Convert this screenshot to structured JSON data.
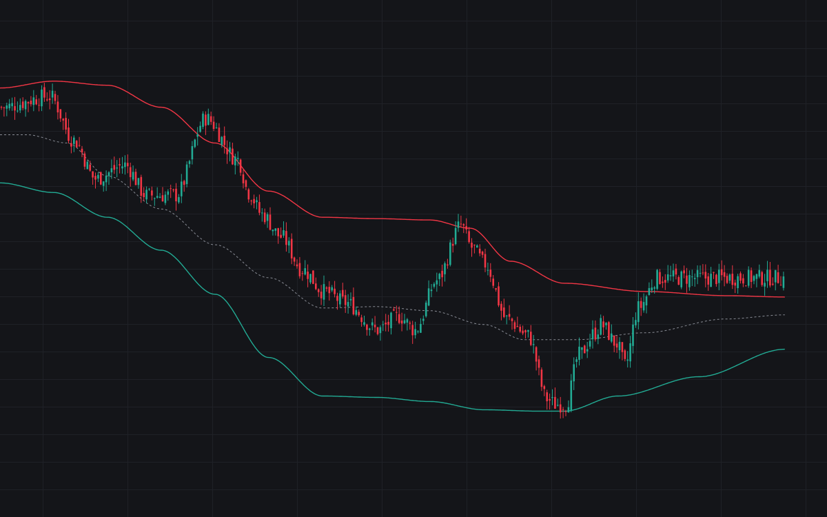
{
  "chart_data": {
    "type": "candlestick",
    "title": "",
    "xlabel": "",
    "ylabel": "",
    "x_range": [
      0,
      300
    ],
    "ylim": [
      -10,
      178
    ],
    "grid": true,
    "legend": "none",
    "colors": {
      "background": "#141519",
      "grid": "#1f2127",
      "up": "#22ab94",
      "down": "#f23645",
      "upper_band": "#f23645",
      "lower_band": "#22ab94",
      "mid_band": "#8a8d96"
    },
    "series": [
      {
        "type": "band_upper",
        "points": [
          [
            0,
            146
          ],
          [
            20,
            148.5
          ],
          [
            40,
            147
          ],
          [
            60,
            139
          ],
          [
            80,
            126
          ],
          [
            100,
            108.5
          ],
          [
            120,
            99
          ],
          [
            140,
            98.5
          ],
          [
            160,
            98
          ],
          [
            175,
            95
          ],
          [
            190,
            83
          ],
          [
            210,
            75
          ],
          [
            240,
            72
          ],
          [
            270,
            70.5
          ],
          [
            292,
            70
          ]
        ]
      },
      {
        "type": "band_mid",
        "points": [
          [
            0,
            129
          ],
          [
            10,
            129
          ],
          [
            25,
            126
          ],
          [
            40,
            114
          ],
          [
            60,
            102
          ],
          [
            80,
            89
          ],
          [
            100,
            77
          ],
          [
            120,
            66
          ],
          [
            140,
            66.5
          ],
          [
            160,
            65
          ],
          [
            180,
            60
          ],
          [
            195,
            54.5
          ],
          [
            215,
            54.5
          ],
          [
            240,
            57
          ],
          [
            270,
            62
          ],
          [
            292,
            63.5
          ]
        ]
      },
      {
        "type": "band_lower",
        "points": [
          [
            0,
            111.5
          ],
          [
            20,
            108
          ],
          [
            40,
            99
          ],
          [
            60,
            87
          ],
          [
            80,
            71
          ],
          [
            100,
            48
          ],
          [
            120,
            34
          ],
          [
            140,
            33.5
          ],
          [
            160,
            32
          ],
          [
            180,
            29
          ],
          [
            200,
            28.5
          ],
          [
            210,
            28.5
          ],
          [
            230,
            34
          ],
          [
            260,
            41
          ],
          [
            292,
            51
          ]
        ]
      },
      {
        "type": "candles",
        "trend": [
          [
            0,
            139
          ],
          [
            18,
            143
          ],
          [
            27,
            127
          ],
          [
            35,
            113
          ],
          [
            46,
            118
          ],
          [
            54,
            107
          ],
          [
            65,
            107
          ],
          [
            76,
            135
          ],
          [
            88,
            120
          ],
          [
            92,
            108
          ],
          [
            97,
            100
          ],
          [
            104,
            92
          ],
          [
            112,
            80
          ],
          [
            120,
            72
          ],
          [
            128,
            68
          ],
          [
            140,
            58
          ],
          [
            148,
            63
          ],
          [
            154,
            58
          ],
          [
            162,
            76
          ],
          [
            171,
            96
          ],
          [
            175,
            88
          ],
          [
            180,
            82
          ],
          [
            188,
            62
          ],
          [
            196,
            56
          ],
          [
            203,
            33
          ],
          [
            206,
            31
          ],
          [
            210,
            31
          ],
          [
            215,
            49
          ],
          [
            221,
            57
          ],
          [
            223,
            60
          ],
          [
            229,
            53
          ],
          [
            232,
            45
          ],
          [
            237,
            66
          ],
          [
            244,
            77
          ],
          [
            291,
            77
          ]
        ]
      }
    ]
  }
}
